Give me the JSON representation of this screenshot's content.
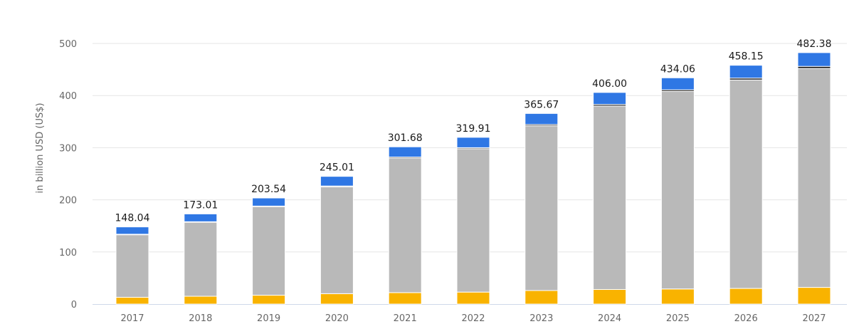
{
  "chart_data": {
    "type": "bar",
    "stacked": true,
    "title": "",
    "xlabel": "",
    "ylabel": "in billion USD (US$)",
    "categories": [
      "2017",
      "2018",
      "2019",
      "2020",
      "2021",
      "2022",
      "2023",
      "2024",
      "2025",
      "2026",
      "2027"
    ],
    "ylim": [
      0,
      500
    ],
    "yticks": [
      "0",
      "100",
      "200",
      "300",
      "400",
      "500"
    ],
    "grid": true,
    "legend": "none",
    "totals": [
      "148.04",
      "173.01",
      "203.54",
      "245.01",
      "301.68",
      "319.91",
      "365.67",
      "406.00",
      "434.06",
      "458.15",
      "482.38"
    ],
    "series": [
      {
        "color": "#f9b300",
        "values": [
          13,
          15,
          17,
          20,
          22,
          23,
          26,
          28,
          29,
          30,
          32
        ]
      },
      {
        "color": "#b9b9b9",
        "values": [
          120,
          142,
          170,
          205,
          258,
          275,
          316,
          352,
          379,
          400,
          420
        ]
      },
      {
        "color": "#1a1a1a",
        "values": [
          1.0,
          1.0,
          1.0,
          1.5,
          2.0,
          2.0,
          2.5,
          3.0,
          3.0,
          3.5,
          4.0
        ]
      },
      {
        "color": "#2f77e4",
        "values": [
          14.04,
          15.01,
          15.54,
          18.51,
          19.68,
          19.91,
          21.17,
          23.0,
          23.06,
          24.65,
          26.38
        ]
      }
    ]
  }
}
